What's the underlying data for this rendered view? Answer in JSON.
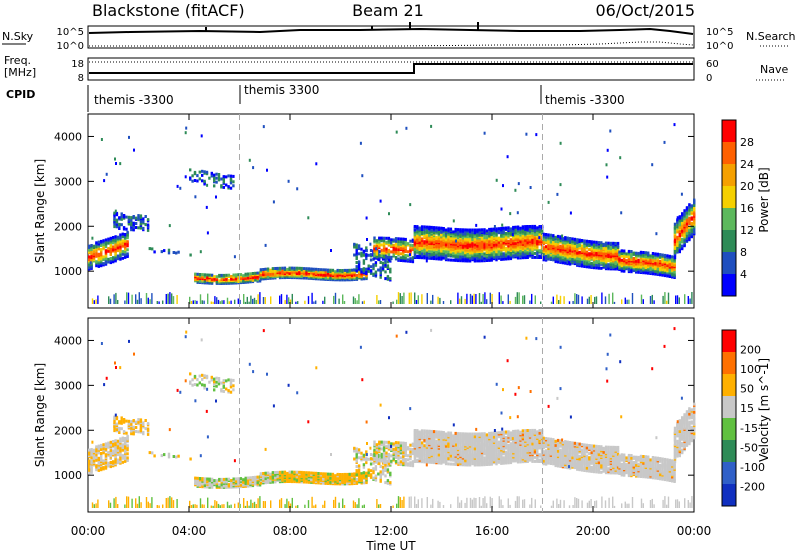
{
  "header": {
    "title": "Blackstone (fitACF)",
    "beam": "Beam 21",
    "date": "06/Oct/2015"
  },
  "nsky_panel": {
    "left_label": "N.Sky",
    "left_ticks": [
      "10^5",
      "10^0"
    ],
    "right_label": "N.Search",
    "right_ticks": [
      "10^5",
      "10^0"
    ]
  },
  "freq_panel": {
    "left_label_line1": "Freq.",
    "left_label_line2": "[MHz]",
    "left_ticks": [
      "18",
      "8"
    ],
    "right_label": "Nave",
    "right_ticks": [
      "60",
      "0"
    ]
  },
  "cpid": {
    "label": "CPID",
    "segments": [
      {
        "name": "themis -3300",
        "start_hour": 0
      },
      {
        "name": "themis 3300",
        "start_hour": 6
      },
      {
        "name": "themis -3300",
        "start_hour": 18
      }
    ]
  },
  "chart_data": [
    {
      "type": "heatmap",
      "quantity": "Power",
      "ylabel": "Slant Range [km]",
      "colorbar_label": "Power [dB]",
      "colorbar_ticks": [
        "28",
        "24",
        "20",
        "16",
        "12",
        "8",
        "4"
      ],
      "colors": [
        "#0000ff",
        "#1f4fbf",
        "#2e8b57",
        "#5cb85c",
        "#f5d000",
        "#f5a000",
        "#ff6000",
        "#ff0000"
      ],
      "x_ticks": [
        "00:00",
        "04:00",
        "08:00",
        "12:00",
        "16:00",
        "20:00",
        "00:00"
      ],
      "y_ticks": [
        "1000",
        "2000",
        "3000",
        "4000"
      ],
      "ylim": [
        180,
        4500
      ],
      "xlim_hours": [
        0,
        24
      ]
    },
    {
      "type": "heatmap",
      "quantity": "Velocity",
      "ylabel": "Slant Range [km]",
      "colorbar_label": "Velocity [m s^-1]",
      "colorbar_ticks": [
        "200",
        "100",
        "50",
        "15",
        "-15",
        "-50",
        "-100",
        "-200"
      ],
      "colors": [
        "#1030c0",
        "#3060c8",
        "#2e8b57",
        "#60c040",
        "#c8c8c8",
        "#ffb000",
        "#ff7000",
        "#ff0000"
      ],
      "x_ticks": [
        "00:00",
        "04:00",
        "08:00",
        "12:00",
        "16:00",
        "20:00",
        "00:00"
      ],
      "y_ticks": [
        "1000",
        "2000",
        "3000",
        "4000"
      ],
      "ylim": [
        180,
        4500
      ],
      "xlim_hours": [
        0,
        24
      ],
      "xlabel": "Time UT"
    }
  ]
}
